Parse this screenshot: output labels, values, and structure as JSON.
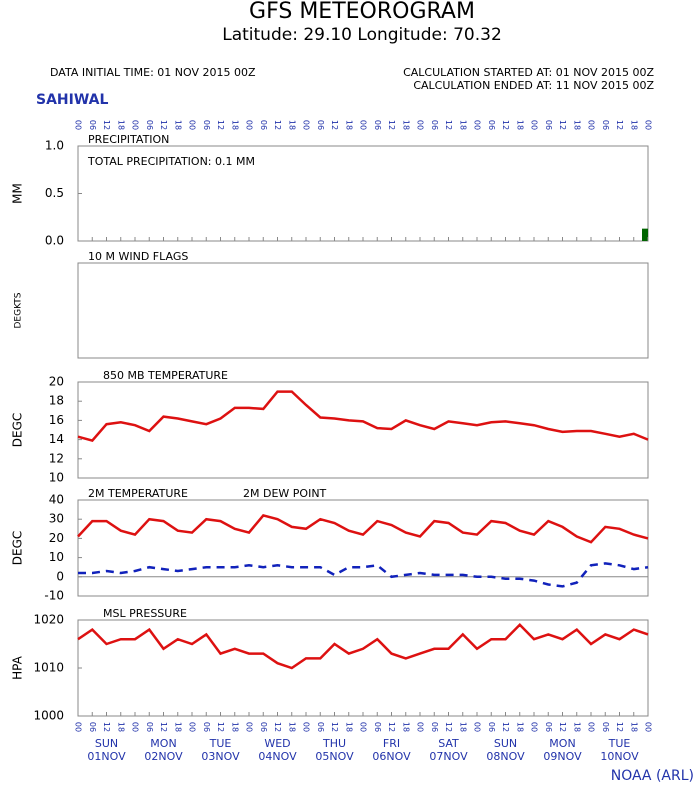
{
  "header": {
    "title": "GFS METEOROGRAM",
    "subtitle": "Latitude: 29.10 Longitude:  70.32",
    "initial_time": "DATA INITIAL TIME: 01 NOV 2015 00Z",
    "calc_started": "CALCULATION STARTED AT: 01 NOV 2015 00Z",
    "calc_ended": "CALCULATION ENDED AT: 11 NOV 2015 00Z",
    "location": "SAHIWAL",
    "credit": "NOAA (ARL)"
  },
  "time": {
    "xlim": [
      0,
      240
    ],
    "x": [
      0,
      6,
      12,
      18,
      24,
      30,
      36,
      42,
      48,
      54,
      60,
      66,
      72,
      78,
      84,
      90,
      96,
      102,
      108,
      114,
      120,
      126,
      132,
      138,
      144,
      150,
      156,
      162,
      168,
      174,
      180,
      186,
      192,
      198,
      204,
      210,
      216,
      222,
      228,
      234,
      240
    ],
    "xticks": [
      {
        "value": 0,
        "label": "00"
      },
      {
        "value": 6,
        "label": "06"
      },
      {
        "value": 12,
        "label": "12"
      },
      {
        "value": 18,
        "label": "18"
      },
      {
        "value": 24,
        "label": "00"
      },
      {
        "value": 30,
        "label": "06"
      },
      {
        "value": 36,
        "label": "12"
      },
      {
        "value": 42,
        "label": "18"
      },
      {
        "value": 48,
        "label": "00"
      },
      {
        "value": 54,
        "label": "06"
      },
      {
        "value": 60,
        "label": "12"
      },
      {
        "value": 66,
        "label": "18"
      },
      {
        "value": 72,
        "label": "00"
      },
      {
        "value": 78,
        "label": "06"
      },
      {
        "value": 84,
        "label": "12"
      },
      {
        "value": 90,
        "label": "18"
      },
      {
        "value": 96,
        "label": "00"
      },
      {
        "value": 102,
        "label": "06"
      },
      {
        "value": 108,
        "label": "12"
      },
      {
        "value": 114,
        "label": "18"
      },
      {
        "value": 120,
        "label": "00"
      },
      {
        "value": 126,
        "label": "06"
      },
      {
        "value": 132,
        "label": "12"
      },
      {
        "value": 138,
        "label": "18"
      },
      {
        "value": 144,
        "label": "00"
      },
      {
        "value": 150,
        "label": "06"
      },
      {
        "value": 156,
        "label": "12"
      },
      {
        "value": 162,
        "label": "18"
      },
      {
        "value": 168,
        "label": "00"
      },
      {
        "value": 174,
        "label": "06"
      },
      {
        "value": 180,
        "label": "12"
      },
      {
        "value": 186,
        "label": "18"
      },
      {
        "value": 192,
        "label": "00"
      },
      {
        "value": 198,
        "label": "06"
      },
      {
        "value": 204,
        "label": "12"
      },
      {
        "value": 210,
        "label": "18"
      },
      {
        "value": 216,
        "label": "00"
      },
      {
        "value": 222,
        "label": "06"
      },
      {
        "value": 228,
        "label": "12"
      },
      {
        "value": 234,
        "label": "18"
      },
      {
        "value": 240,
        "label": "00"
      }
    ],
    "days": [
      {
        "value": 12,
        "weekday": "SUN",
        "date": "01NOV"
      },
      {
        "value": 36,
        "weekday": "MON",
        "date": "02NOV"
      },
      {
        "value": 60,
        "weekday": "TUE",
        "date": "03NOV"
      },
      {
        "value": 84,
        "weekday": "WED",
        "date": "04NOV"
      },
      {
        "value": 108,
        "weekday": "THU",
        "date": "05NOV"
      },
      {
        "value": 132,
        "weekday": "FRI",
        "date": "06NOV"
      },
      {
        "value": 156,
        "weekday": "SAT",
        "date": "07NOV"
      },
      {
        "value": 180,
        "weekday": "SUN",
        "date": "08NOV"
      },
      {
        "value": 204,
        "weekday": "MON",
        "date": "09NOV"
      },
      {
        "value": 228,
        "weekday": "TUE",
        "date": "10NOV"
      }
    ]
  },
  "chart_data": [
    {
      "type": "bar",
      "title": "PRECIPITATION",
      "annotation": "TOTAL PRECIPITATION:   0.1 MM",
      "ylabel": "MM",
      "ylim": [
        0,
        1
      ],
      "yticks": [
        {
          "value": 0,
          "label": "0.0"
        },
        {
          "value": 0.5,
          "label": "0.5"
        },
        {
          "value": 1,
          "label": "1.0"
        }
      ],
      "series": [
        {
          "name": "PRECIPITATION",
          "color": "#006400",
          "values": [
            0,
            0,
            0,
            0,
            0,
            0,
            0,
            0,
            0,
            0,
            0,
            0,
            0,
            0,
            0,
            0,
            0,
            0,
            0,
            0,
            0,
            0,
            0,
            0,
            0,
            0,
            0,
            0,
            0,
            0,
            0,
            0,
            0,
            0,
            0,
            0,
            0,
            0,
            0,
            0,
            0.13
          ]
        }
      ]
    },
    {
      "type": "panel",
      "title": "10 M  WIND FLAGS",
      "ylabel": "DEGKTS"
    },
    {
      "type": "line",
      "title": "850 MB  TEMPERATURE",
      "ylabel": "DEGC",
      "ylim": [
        10,
        20
      ],
      "yticks": [
        10,
        12,
        14,
        16,
        18,
        20
      ],
      "series": [
        {
          "name": "850 MB  TEMPERATURE",
          "color": "#dd1111",
          "dash": false,
          "values": [
            14.3,
            13.9,
            15.6,
            15.8,
            15.5,
            14.9,
            16.4,
            16.2,
            15.9,
            15.6,
            16.2,
            17.3,
            17.3,
            17.2,
            19.0,
            19.0,
            17.6,
            16.3,
            16.2,
            16.0,
            15.9,
            15.2,
            15.1,
            16.0,
            15.5,
            15.1,
            15.9,
            15.7,
            15.5,
            15.8,
            15.9,
            15.7,
            15.5,
            15.1,
            14.8,
            14.9,
            14.9,
            14.6,
            14.3,
            14.6,
            14.0
          ]
        }
      ]
    },
    {
      "type": "line",
      "ylabel": "DEGC",
      "zero_line": true,
      "ylim": [
        -10,
        40
      ],
      "yticks": [
        -10,
        0,
        10,
        20,
        30,
        40
      ],
      "series": [
        {
          "name": "2M TEMPERATURE",
          "color": "#dd1111",
          "dash": false,
          "values": [
            21,
            29,
            29,
            24,
            22,
            30,
            29,
            24,
            23,
            30,
            29,
            25,
            23,
            32,
            30,
            26,
            25,
            30,
            28,
            24,
            22,
            29,
            27,
            23,
            21,
            29,
            28,
            23,
            22,
            29,
            28,
            24,
            22,
            29,
            26,
            21,
            18,
            26,
            25,
            22,
            20
          ]
        },
        {
          "name": "2M  DEW POINT",
          "color": "#1122bb",
          "dash": true,
          "values": [
            2,
            2,
            3,
            2,
            3,
            5,
            4,
            3,
            4,
            5,
            5,
            5,
            6,
            5,
            6,
            5,
            5,
            5,
            1,
            5,
            5,
            6,
            0,
            1,
            2,
            1,
            1,
            1,
            0,
            0,
            -1,
            -1,
            -2,
            -4,
            -5,
            -3,
            6,
            7,
            6,
            4,
            5
          ]
        }
      ]
    },
    {
      "type": "line",
      "title": "MSL PRESSURE",
      "ylabel": "HPA",
      "ylim": [
        1000,
        1020
      ],
      "yticks": [
        1000,
        1010,
        1020
      ],
      "series": [
        {
          "name": "MSL PRESSURE",
          "color": "#dd1111",
          "dash": false,
          "values": [
            1016,
            1018,
            1015,
            1016,
            1016,
            1018,
            1014,
            1016,
            1015,
            1017,
            1013,
            1014,
            1013,
            1013,
            1011,
            1010,
            1012,
            1012,
            1015,
            1013,
            1014,
            1016,
            1013,
            1012,
            1013,
            1014,
            1014,
            1017,
            1014,
            1016,
            1016,
            1019,
            1016,
            1017,
            1016,
            1018,
            1015,
            1017,
            1016,
            1018,
            1017
          ]
        }
      ]
    }
  ]
}
